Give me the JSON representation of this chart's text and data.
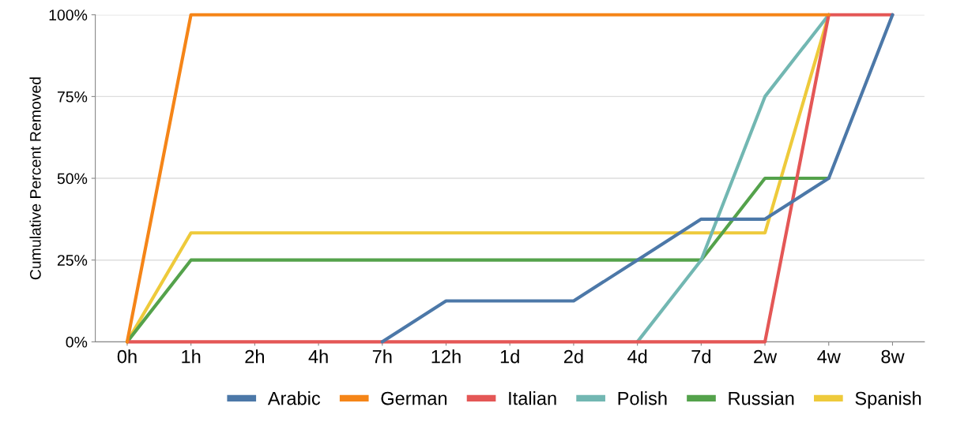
{
  "chart_data": {
    "type": "line",
    "ylabel": "Cumulative Percent Removed",
    "categories": [
      "0h",
      "1h",
      "2h",
      "4h",
      "7h",
      "12h",
      "1d",
      "2d",
      "4d",
      "7d",
      "2w",
      "4w",
      "8w"
    ],
    "ylim": [
      0,
      100
    ],
    "yticks": [
      {
        "value": 0,
        "label": "0%"
      },
      {
        "value": 25,
        "label": "25%"
      },
      {
        "value": 50,
        "label": "50%"
      },
      {
        "value": 75,
        "label": "75%"
      },
      {
        "value": 100,
        "label": "100%"
      }
    ],
    "grid": "y",
    "legend": "bottom",
    "marker": "none",
    "line_style": "solid",
    "series": [
      {
        "name": "Arabic",
        "color": "#4c78a8",
        "values": [
          null,
          null,
          null,
          null,
          0,
          12.5,
          12.5,
          12.5,
          25,
          37.5,
          37.5,
          50,
          100
        ]
      },
      {
        "name": "German",
        "color": "#f58518",
        "values": [
          0,
          100,
          100,
          100,
          100,
          100,
          100,
          100,
          100,
          100,
          100,
          100,
          null
        ]
      },
      {
        "name": "Italian",
        "color": "#e45756",
        "values": [
          0,
          0,
          0,
          0,
          0,
          0,
          0,
          0,
          0,
          0,
          0,
          100,
          100
        ]
      },
      {
        "name": "Polish",
        "color": "#72b7b2",
        "values": [
          null,
          null,
          null,
          null,
          null,
          null,
          null,
          null,
          0,
          25,
          75,
          100,
          null
        ]
      },
      {
        "name": "Russian",
        "color": "#54a24b",
        "values": [
          0,
          25,
          25,
          25,
          25,
          25,
          25,
          25,
          25,
          25,
          50,
          50,
          null
        ]
      },
      {
        "name": "Spanish",
        "color": "#eeca3b",
        "values": [
          0,
          33.3,
          33.3,
          33.3,
          33.3,
          33.3,
          33.3,
          33.3,
          33.3,
          33.3,
          33.3,
          100,
          null
        ]
      }
    ]
  }
}
